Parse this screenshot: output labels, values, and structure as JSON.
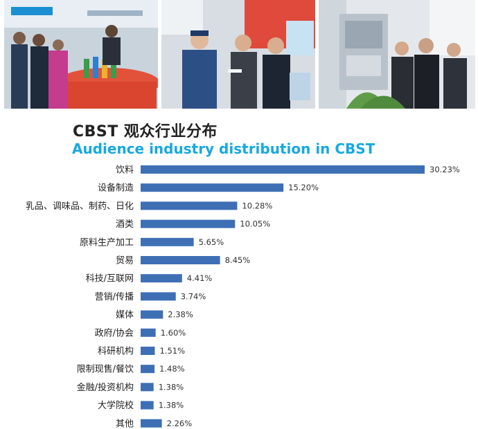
{
  "title_cn": "CBST 观众行业分布",
  "title_en": "Audience industry distribution in CBST",
  "colors": {
    "bar": "#3e6fb5",
    "title_en": "#18a8e0",
    "title_cn": "#222222"
  },
  "photos": [
    {
      "name": "exhibition-booth-photo"
    },
    {
      "name": "visitors-inspecting-product-photo"
    },
    {
      "name": "machinery-display-photo"
    }
  ],
  "chart_data": {
    "type": "bar",
    "orientation": "horizontal",
    "title": "Audience industry distribution in CBST",
    "categories": [
      "饮料",
      "设备制造",
      "乳品、调味品、制药、日化",
      "酒类",
      "原料生产加工",
      "贸易",
      "科技/互联网",
      "营销/传播",
      "媒体",
      "政府/协会",
      "科研机构",
      "限制现售/餐饮",
      "金融/投资机构",
      "大学院校",
      "其他"
    ],
    "values": [
      30.23,
      15.2,
      10.28,
      10.05,
      5.65,
      8.45,
      4.41,
      3.74,
      2.38,
      1.6,
      1.51,
      1.48,
      1.38,
      1.38,
      2.26
    ],
    "value_labels": [
      "30.23%",
      "15.20%",
      "10.28%",
      "10.05%",
      "5.65%",
      "8.45%",
      "4.41%",
      "3.74%",
      "2.38%",
      "1.60%",
      "1.51%",
      "1.48%",
      "1.38%",
      "1.38%",
      "2.26%"
    ],
    "unit": "%",
    "xlim": [
      0,
      30.23
    ],
    "grid": false,
    "legend": "none"
  }
}
